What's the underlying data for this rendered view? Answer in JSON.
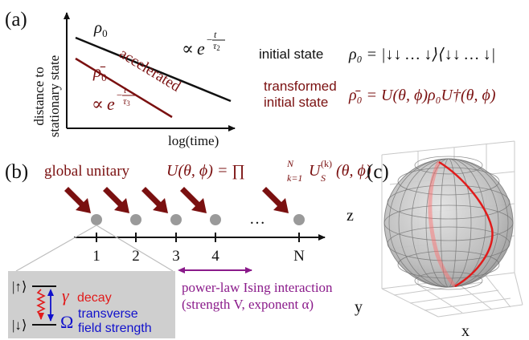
{
  "colors": {
    "dark_red": "#7a1010",
    "bright_red": "#e11b1b",
    "blue": "#1111cc",
    "purple": "#8a1a8a",
    "gray_dot": "#9a9a9a",
    "box_gray": "#cfcfcf",
    "black": "#111111"
  },
  "panel_a": {
    "label": "(a)",
    "ylabel_line1": "distance to",
    "ylabel_line2": "stationary state",
    "xlabel": "log(time)",
    "rho0": "ρ",
    "rho0_sub": "0",
    "rhobar": "ρ̄",
    "rhobar_sub": "0",
    "prop_sym": "∝",
    "e_sym": "e",
    "exp_upper": "−",
    "frac_num": "t",
    "tau2": "τ",
    "tau2_sub": "2",
    "tau3": "τ",
    "tau3_sub": "3",
    "accelerated": "accelerated",
    "initial_state_label": "initial state",
    "initial_state_eq": "ρ₀ = |↓↓ … ↓⟩⟨↓↓ … ↓|",
    "transformed_label_line1": "transformed",
    "transformed_label_line2": "initial state",
    "transformed_eq": "ρ̄₀ = U(θ, ϕ)ρ₀U†(θ, ϕ)"
  },
  "panel_b": {
    "label": "(b)",
    "global_unitary": "global unitary",
    "unitary_eq": "U(θ, ϕ) = ∏",
    "prod_limits_top": "N",
    "prod_limits_bottom": "k=1",
    "unitary_rhs": "U",
    "unitary_rhs_sub": "S",
    "unitary_rhs_sup": "(k)",
    "unitary_rhs_args": "(θ, ϕ)",
    "sites": [
      "1",
      "2",
      "3",
      "4",
      "N"
    ],
    "ellipsis": "…",
    "interaction_line1": "power-law Ising interaction",
    "interaction_line2": "(strength V, exponent α)",
    "ket_up": "|↑⟩",
    "ket_down": "|↓⟩",
    "gamma": "γ",
    "decay": "decay",
    "omega": "Ω",
    "transverse_line1": "transverse",
    "transverse_line2": "field strength"
  },
  "panel_c": {
    "label": "(c)",
    "axis_z": "z",
    "axis_y": "y",
    "axis_x": "x"
  }
}
